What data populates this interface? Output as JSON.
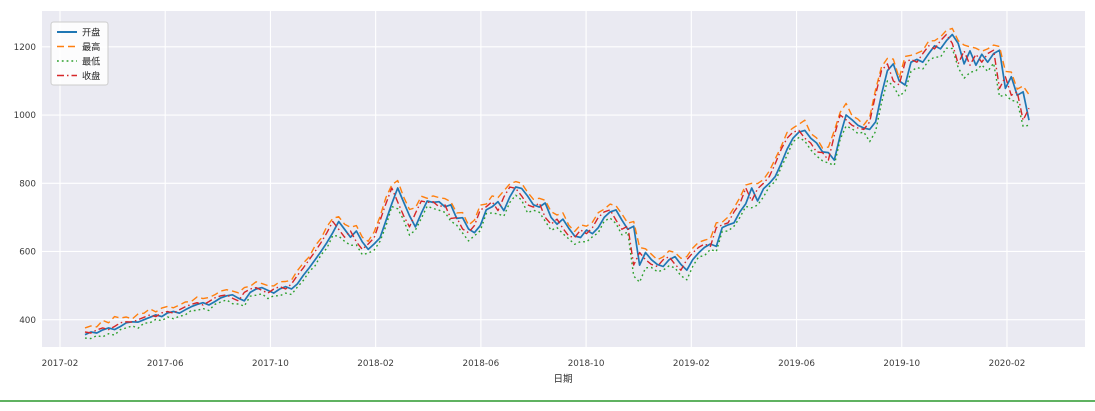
{
  "figure": {
    "background_color": "#ffffff",
    "axes_background_color": "#eaeaf2",
    "grid_color": "#ffffff",
    "separator_line_color": "#5fb261"
  },
  "chart_data": {
    "type": "line",
    "title": "",
    "xlabel": "日期",
    "ylabel": "",
    "grid": true,
    "legend_position": "upper left",
    "x_tick_labels": [
      "2017-02",
      "2017-06",
      "2017-10",
      "2018-02",
      "2018-06",
      "2018-10",
      "2019-02",
      "2019-06",
      "2019-10",
      "2020-02"
    ],
    "y_ticks": [
      400,
      600,
      800,
      1000,
      1200
    ],
    "ylim": [
      320,
      1305
    ],
    "x_range_note": "weekly points, 2017-02-27 to 2020-02-03",
    "series": [
      {
        "name": "开盘",
        "color": "#1f77b4",
        "style": "solid",
        "values": [
          356,
          364,
          361,
          370,
          376,
          371,
          380,
          391,
          394,
          393,
          400,
          407,
          414,
          409,
          420,
          424,
          419,
          429,
          438,
          445,
          450,
          443,
          453,
          464,
          470,
          473,
          463,
          455,
          480,
          490,
          494,
          486,
          478,
          490,
          497,
          490,
          505,
          530,
          552,
          576,
          600,
          626,
          655,
          688,
          665,
          642,
          660,
          628,
          606,
          622,
          640,
          690,
          740,
          786,
          745,
          705,
          672,
          712,
          748,
          744,
          746,
          731,
          737,
          697,
          699,
          666,
          655,
          676,
          722,
          731,
          746,
          720,
          760,
          789,
          785,
          763,
          737,
          730,
          742,
          700,
          680,
          695,
          668,
          645,
          641,
          663,
          652,
          670,
          700,
          716,
          722,
          692,
          665,
          674,
          560,
          597,
          576,
          562,
          556,
          576,
          585,
          562,
          545,
          576,
          596,
          612,
          622,
          615,
          670,
          678,
          684,
          716,
          740,
          786,
          748,
          784,
          800,
          820,
          858,
          900,
          932,
          950,
          955,
          932,
          918,
          892,
          890,
          868,
          940,
          1000,
          986,
          970,
          962,
          958,
          980,
          1060,
          1130,
          1150,
          1100,
          1088,
          1155,
          1163,
          1155,
          1180,
          1203,
          1194,
          1218,
          1236,
          1210,
          1150,
          1188,
          1146,
          1178,
          1155,
          1180,
          1190,
          1078,
          1112,
          1058,
          1068,
          985
        ]
      },
      {
        "name": "最高",
        "color": "#ff7f0e",
        "style": "dashed",
        "values": [
          376,
          382,
          379,
          398,
          391,
          409,
          405,
          408,
          402,
          417,
          419,
          432,
          423,
          434,
          439,
          435,
          443,
          452,
          453,
          467,
          462,
          465,
          473,
          484,
          488,
          484,
          479,
          494,
          498,
          511,
          506,
          500,
          499,
          511,
          512,
          516,
          544,
          566,
          584,
          617,
          638,
          673,
          697,
          702,
          680,
          671,
          676,
          642,
          630,
          657,
          702,
          758,
          795,
          808,
          760,
          723,
          728,
          762,
          756,
          763,
          758,
          755,
          746,
          713,
          714,
          677,
          692,
          736,
          739,
          763,
          758,
          778,
          798,
          805,
          800,
          774,
          753,
          756,
          750,
          717,
          707,
          713,
          677,
          659,
          678,
          674,
          686,
          714,
          724,
          739,
          734,
          710,
          683,
          688,
          612,
          608,
          592,
          576,
          584,
          602,
          597,
          580,
          585,
          610,
          627,
          633,
          638,
          684,
          686,
          701,
          728,
          758,
          795,
          800,
          799,
          811,
          836,
          872,
          908,
          949,
          962,
          973,
          985,
          946,
          933,
          903,
          906,
          954,
          1008,
          1034,
          998,
          988,
          971,
          994,
          1075,
          1141,
          1166,
          1164,
          1108,
          1172,
          1175,
          1181,
          1189,
          1217,
          1218,
          1229,
          1248,
          1254,
          1218,
          1205,
          1200,
          1196,
          1187,
          1194,
          1205,
          1201,
          1128,
          1126,
          1076,
          1085,
          1060
        ]
      },
      {
        "name": "最低",
        "color": "#2ca02c",
        "style": "dotted",
        "values": [
          346,
          345,
          353,
          350,
          359,
          355,
          371,
          376,
          382,
          375,
          390,
          391,
          401,
          397,
          408,
          403,
          410,
          414,
          427,
          427,
          433,
          427,
          445,
          452,
          458,
          447,
          446,
          440,
          469,
          472,
          476,
          462,
          470,
          470,
          478,
          474,
          496,
          515,
          541,
          558,
          590,
          610,
          647,
          645,
          630,
          618,
          619,
          591,
          595,
          604,
          630,
          674,
          732,
          725,
          693,
          648,
          663,
          697,
          733,
          726,
          721,
          715,
          689,
          677,
          654,
          631,
          646,
          661,
          711,
          713,
          710,
          704,
          744,
          765,
          751,
          713,
          721,
          715,
          689,
          662,
          670,
          652,
          637,
          621,
          629,
          628,
          643,
          655,
          689,
          698,
          682,
          649,
          657,
          528,
          510,
          552,
          553,
          541,
          545,
          558,
          552,
          529,
          517,
          556,
          584,
          588,
          606,
          600,
          659,
          660,
          674,
          700,
          732,
          728,
          736,
          760,
          791,
          805,
          847,
          882,
          922,
          934,
          924,
          898,
          880,
          866,
          859,
          853,
          929,
          968,
          960,
          946,
          950,
          922,
          952,
          1036,
          1100,
          1085,
          1055,
          1070,
          1128,
          1139,
          1135,
          1160,
          1170,
          1170,
          1196,
          1195,
          1139,
          1108,
          1125,
          1130,
          1147,
          1128,
          1152,
          1054,
          1060,
          1043,
          1040,
          967,
          970
        ]
      },
      {
        "name": "收盘",
        "color": "#d62728",
        "style": "dashdot",
        "values": [
          364,
          361,
          370,
          376,
          371,
          380,
          391,
          394,
          393,
          400,
          407,
          414,
          409,
          420,
          424,
          419,
          429,
          438,
          445,
          450,
          443,
          453,
          464,
          470,
          473,
          463,
          455,
          480,
          490,
          494,
          486,
          478,
          490,
          497,
          490,
          505,
          530,
          552,
          576,
          600,
          626,
          655,
          688,
          665,
          642,
          660,
          628,
          606,
          622,
          640,
          690,
          740,
          786,
          745,
          705,
          672,
          712,
          748,
          744,
          746,
          731,
          737,
          697,
          699,
          666,
          655,
          676,
          722,
          731,
          746,
          720,
          760,
          789,
          785,
          763,
          737,
          730,
          742,
          700,
          680,
          695,
          668,
          645,
          641,
          663,
          652,
          670,
          700,
          716,
          722,
          692,
          665,
          674,
          560,
          597,
          576,
          562,
          556,
          576,
          585,
          562,
          545,
          576,
          596,
          612,
          622,
          615,
          670,
          678,
          684,
          716,
          740,
          786,
          748,
          784,
          800,
          820,
          858,
          900,
          932,
          950,
          955,
          932,
          918,
          892,
          890,
          868,
          940,
          1000,
          986,
          970,
          962,
          958,
          980,
          1060,
          1130,
          1150,
          1100,
          1088,
          1155,
          1163,
          1155,
          1180,
          1203,
          1194,
          1218,
          1236,
          1210,
          1150,
          1188,
          1146,
          1178,
          1155,
          1180,
          1190,
          1078,
          1112,
          1058,
          1068,
          985,
          1020
        ]
      }
    ]
  }
}
